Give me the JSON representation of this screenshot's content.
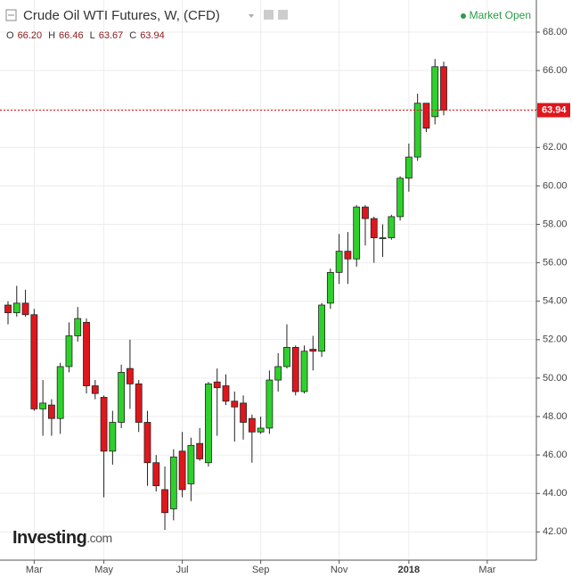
{
  "chart_data": {
    "type": "candlestick",
    "title": "Crude Oil WTI Futures, W, (CFD)",
    "market_status": "Market Open",
    "quote": [
      {
        "name": "O",
        "value": 66.2,
        "label": "66.20"
      },
      {
        "name": "H",
        "value": 66.46,
        "label": "66.46"
      },
      {
        "name": "L",
        "value": 63.67,
        "label": "63.67"
      },
      {
        "name": "C",
        "value": 63.94,
        "label": "63.94"
      }
    ],
    "logo": {
      "main": "Investing",
      "suffix": ".com"
    },
    "categories": [
      null,
      null,
      null,
      "Mar",
      null,
      null,
      null,
      null,
      null,
      null,
      null,
      "May",
      null,
      null,
      null,
      null,
      null,
      null,
      null,
      null,
      "Jul",
      null,
      null,
      null,
      null,
      null,
      null,
      null,
      null,
      "Sep",
      null,
      null,
      null,
      null,
      null,
      null,
      null,
      null,
      "Nov",
      null,
      null,
      null,
      null,
      null,
      null,
      null,
      "2018",
      null,
      null,
      null,
      null,
      null,
      null,
      null,
      null,
      "Mar"
    ],
    "open": [
      53.8,
      53.4,
      53.9,
      53.3,
      48.4,
      48.6,
      47.9,
      50.6,
      52.2,
      52.9,
      49.6,
      49.0,
      46.2,
      47.7,
      50.5,
      49.7,
      47.7,
      45.6,
      44.2,
      43.2,
      46.2,
      44.5,
      46.6,
      45.6,
      49.8,
      49.6,
      48.8,
      48.7,
      47.9,
      47.2,
      47.4,
      49.9,
      50.6,
      51.6,
      49.3,
      51.5,
      51.4,
      53.9,
      55.5,
      56.6,
      56.2,
      58.9,
      58.3,
      57.3,
      57.3,
      58.4,
      60.4,
      61.5,
      64.3,
      63.6,
      66.2,
      null,
      null,
      null,
      null,
      null
    ],
    "high": [
      54.0,
      54.8,
      54.6,
      53.6,
      49.9,
      48.9,
      50.8,
      52.9,
      53.7,
      53.1,
      49.9,
      49.1,
      48.3,
      50.7,
      52.0,
      49.9,
      48.3,
      46.0,
      45.4,
      46.3,
      47.2,
      46.9,
      47.4,
      49.8,
      50.5,
      50.2,
      49.3,
      49.1,
      48.1,
      48.0,
      50.4,
      51.3,
      52.8,
      51.7,
      51.7,
      52.2,
      53.9,
      55.7,
      57.5,
      57.6,
      59.0,
      59.0,
      58.4,
      58.0,
      58.5,
      60.5,
      62.2,
      64.8,
      64.3,
      66.6,
      66.46,
      null,
      null,
      null,
      null,
      null
    ],
    "low": [
      52.8,
      53.2,
      53.2,
      48.3,
      47.0,
      47.0,
      47.1,
      50.3,
      51.9,
      49.2,
      48.9,
      43.8,
      45.5,
      47.4,
      48.4,
      47.2,
      44.4,
      44.1,
      42.1,
      42.6,
      43.8,
      43.6,
      45.7,
      45.4,
      47.0,
      48.6,
      46.7,
      46.8,
      45.6,
      47.1,
      47.1,
      49.3,
      50.5,
      49.1,
      49.2,
      50.4,
      51.1,
      53.6,
      54.9,
      54.9,
      55.8,
      56.9,
      56.0,
      56.3,
      57.2,
      58.2,
      59.7,
      61.3,
      62.8,
      63.2,
      63.67,
      null,
      null,
      null,
      null,
      null
    ],
    "close": [
      53.4,
      53.9,
      53.3,
      48.4,
      48.7,
      47.9,
      50.6,
      52.2,
      53.1,
      49.6,
      49.2,
      46.2,
      47.7,
      50.3,
      49.7,
      47.7,
      45.6,
      44.4,
      43.0,
      45.9,
      44.2,
      46.5,
      45.8,
      49.7,
      49.5,
      48.8,
      48.5,
      47.7,
      47.2,
      47.4,
      49.9,
      50.6,
      51.6,
      49.3,
      51.4,
      51.4,
      53.8,
      55.5,
      56.6,
      56.2,
      58.9,
      58.3,
      57.3,
      57.3,
      58.4,
      60.4,
      61.5,
      64.3,
      63.0,
      66.2,
      63.94,
      null,
      null,
      null,
      null,
      null
    ],
    "up_color": "#2ed12b",
    "down_color": "#e0161d",
    "last_price": {
      "value": 63.94,
      "label": "63.94"
    },
    "last_price_color": "#e0161d",
    "ylim": [
      40.53,
      69.67
    ],
    "yticks": [
      {
        "value": 42,
        "label": "42.00"
      },
      {
        "value": 44,
        "label": "44.00"
      },
      {
        "value": 46,
        "label": "46.00"
      },
      {
        "value": 48,
        "label": "48.00"
      },
      {
        "value": 50,
        "label": "50.00"
      },
      {
        "value": 52,
        "label": "52.00"
      },
      {
        "value": 54,
        "label": "54.00"
      },
      {
        "value": 56,
        "label": "56.00"
      },
      {
        "value": 58,
        "label": "58.00"
      },
      {
        "value": 60,
        "label": "60.00"
      },
      {
        "value": 62,
        "label": "62.00"
      },
      {
        "value": 64,
        "label": "64.00"
      },
      {
        "value": 66,
        "label": "66.00"
      },
      {
        "value": 68,
        "label": "68.00"
      }
    ],
    "grid": true
  }
}
